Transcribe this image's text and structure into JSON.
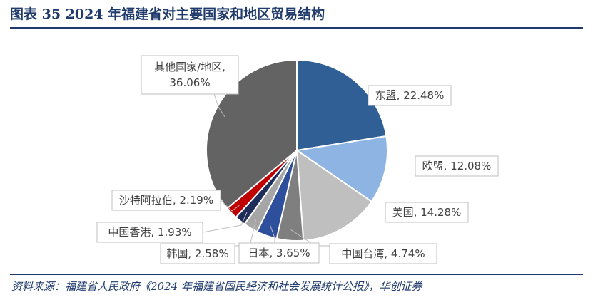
{
  "header": {
    "title": "图表 35    2024 年福建省对主要国家和地区贸易结构"
  },
  "footer": {
    "source": "资料来源：福建省人民政府《2024 年福建省国民经济和社会发展统计公报》，华创证券"
  },
  "chart_data": {
    "type": "pie",
    "title": "",
    "slices": [
      {
        "name": "东盟",
        "value": 22.48,
        "label": "东盟, 22.48%",
        "color": "#2f5f94"
      },
      {
        "name": "欧盟",
        "value": 12.08,
        "label": "欧盟, 12.08%",
        "color": "#8eb4e3"
      },
      {
        "name": "美国",
        "value": 14.28,
        "label": "美国, 14.28%",
        "color": "#bfbfbf"
      },
      {
        "name": "中国台湾",
        "value": 4.74,
        "label": "中国台湾, 4.74%",
        "color": "#7f7f7f"
      },
      {
        "name": "日本",
        "value": 3.65,
        "label": "日本, 3.65%",
        "color": "#2e4f9b"
      },
      {
        "name": "韩国",
        "value": 2.58,
        "label": "韩国, 2.58%",
        "color": "#a6a6a6"
      },
      {
        "name": "中国香港",
        "value": 1.93,
        "label": "中国香港, 1.93%",
        "color": "#1f2d5a"
      },
      {
        "name": "沙特阿拉伯",
        "value": 2.19,
        "label": "沙特阿拉伯, 2.19%",
        "color": "#c00000"
      },
      {
        "name": "其他国家/地区",
        "value": 36.06,
        "label_lines": [
          "其他国家/地区,",
          "36.06%"
        ],
        "color": "#636363"
      }
    ]
  }
}
